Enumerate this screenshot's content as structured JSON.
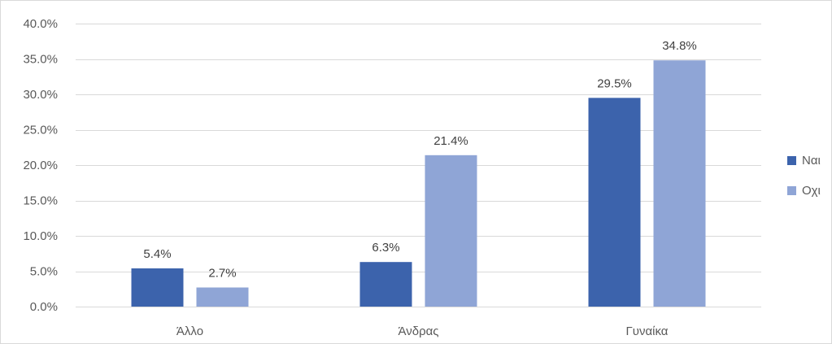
{
  "chart_data": {
    "type": "bar",
    "title": "",
    "xlabel": "",
    "ylabel": "",
    "categories": [
      "Άλλο",
      "Άνδρας",
      "Γυναίκα"
    ],
    "series": [
      {
        "name": "Ναι",
        "color": "#3C63AC",
        "values": [
          5.4,
          6.3,
          29.5
        ],
        "labels": [
          "5.4%",
          "6.3%",
          "29.5%"
        ]
      },
      {
        "name": "Οχι",
        "color": "#8FA5D6",
        "values": [
          2.7,
          21.4,
          34.8
        ],
        "labels": [
          "2.7%",
          "21.4%",
          "34.8%"
        ]
      }
    ],
    "ylim": [
      0,
      40
    ],
    "y_ticks": [
      0,
      5,
      10,
      15,
      20,
      25,
      30,
      35,
      40
    ],
    "y_tick_labels": [
      "0.0%",
      "5.0%",
      "10.0%",
      "15.0%",
      "20.0%",
      "25.0%",
      "30.0%",
      "35.0%",
      "40.0%"
    ],
    "grid": true,
    "legend_position": "right",
    "colors": {
      "gridline": "#D9D9D9",
      "axis_text": "#595959",
      "data_label_text": "#404040"
    }
  }
}
